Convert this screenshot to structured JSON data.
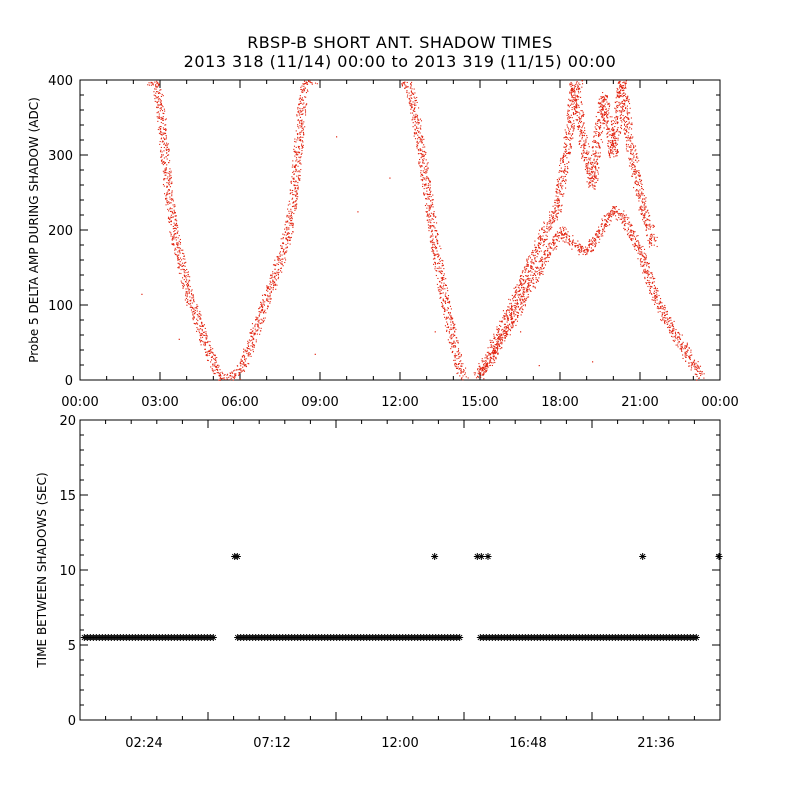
{
  "title_line1": "RBSP-B SHORT ANT. SHADOW TIMES",
  "title_line2": "2013 318 (11/14) 00:00 to 2013 319 (11/15) 00:00",
  "colors": {
    "top_points": "#e2230f",
    "bottom_points": "#000000",
    "axes": "#000000"
  },
  "chart_data": [
    {
      "type": "scatter",
      "ylabel": "Probe 5 DELTA AMP DURING SHADOW (ADC)",
      "xlabel": "",
      "xlim_hours": [
        0,
        24
      ],
      "ylim": [
        0,
        400
      ],
      "x_tick_labels": [
        "00:00",
        "03:00",
        "06:00",
        "09:00",
        "12:00",
        "15:00",
        "18:00",
        "21:00",
        "00:00"
      ],
      "y_tick_labels": [
        "0",
        "100",
        "200",
        "300",
        "400"
      ],
      "marker": "dot",
      "series": [
        {
          "points_hours_value": [
            [
              2.6,
              400
            ],
            [
              2.9,
              390
            ],
            [
              3.1,
              330
            ],
            [
              3.3,
              250
            ],
            [
              3.5,
              200
            ],
            [
              3.7,
              170
            ],
            [
              3.9,
              140
            ],
            [
              4.1,
              110
            ],
            [
              4.3,
              90
            ],
            [
              4.5,
              70
            ],
            [
              4.7,
              50
            ],
            [
              4.9,
              30
            ],
            [
              5.1,
              12
            ],
            [
              5.2,
              5
            ],
            [
              5.8,
              5
            ],
            [
              6.0,
              15
            ],
            [
              6.3,
              40
            ],
            [
              6.6,
              70
            ],
            [
              6.9,
              100
            ],
            [
              7.2,
              130
            ],
            [
              7.5,
              160
            ],
            [
              7.8,
              200
            ],
            [
              8.0,
              250
            ],
            [
              8.2,
              320
            ],
            [
              8.4,
              400
            ],
            [
              8.8,
              400
            ]
          ]
        },
        {
          "points_hours_value": [
            [
              12.2,
              400
            ],
            [
              12.5,
              370
            ],
            [
              12.8,
              300
            ],
            [
              13.1,
              230
            ],
            [
              13.4,
              160
            ],
            [
              13.7,
              100
            ],
            [
              14.0,
              50
            ],
            [
              14.2,
              20
            ],
            [
              14.4,
              5
            ]
          ]
        },
        {
          "points_hours_value": [
            [
              14.9,
              5
            ],
            [
              15.3,
              30
            ],
            [
              15.8,
              70
            ],
            [
              16.3,
              110
            ],
            [
              16.8,
              150
            ],
            [
              17.3,
              190
            ],
            [
              17.6,
              210
            ],
            [
              17.9,
              230
            ],
            [
              18.2,
              300
            ],
            [
              18.5,
              380
            ],
            [
              18.7,
              400
            ]
          ]
        },
        {
          "points_hours_value": [
            [
              15.0,
              8
            ],
            [
              15.6,
              40
            ],
            [
              16.2,
              80
            ],
            [
              16.8,
              120
            ],
            [
              17.3,
              155
            ],
            [
              17.8,
              185
            ],
            [
              18.0,
              200
            ],
            [
              18.5,
              180
            ],
            [
              19.0,
              170
            ],
            [
              19.5,
              200
            ],
            [
              20.0,
              230
            ],
            [
              20.5,
              210
            ],
            [
              21.0,
              170
            ],
            [
              21.5,
              120
            ],
            [
              22.0,
              80
            ],
            [
              22.5,
              50
            ],
            [
              23.0,
              20
            ],
            [
              23.3,
              5
            ]
          ]
        },
        {
          "points_hours_value": [
            [
              18.5,
              400
            ],
            [
              18.8,
              330
            ],
            [
              19.2,
              260
            ],
            [
              19.6,
              380
            ],
            [
              20.0,
              300
            ],
            [
              20.3,
              400
            ],
            [
              20.6,
              320
            ],
            [
              20.9,
              260
            ],
            [
              21.2,
              220
            ],
            [
              21.5,
              180
            ]
          ]
        },
        {
          "points_hours_value": [
            [
              2.3,
              115
            ],
            [
              3.7,
              55
            ],
            [
              8.8,
              35
            ],
            [
              9.6,
              325
            ],
            [
              10.4,
              225
            ],
            [
              11.6,
              270
            ],
            [
              13.3,
              65
            ],
            [
              15.5,
              40
            ],
            [
              16.5,
              65
            ],
            [
              17.2,
              20
            ],
            [
              19.2,
              25
            ]
          ]
        }
      ]
    },
    {
      "type": "scatter",
      "ylabel": "TIME BETWEEN SHADOWS (SEC)",
      "xlabel": "",
      "xlim_hours": [
        0,
        24
      ],
      "ylim": [
        0,
        20
      ],
      "x_tick_labels": [
        "02:24",
        "07:12",
        "12:00",
        "16:48",
        "21:36"
      ],
      "x_tick_hours": [
        2.4,
        7.2,
        12.0,
        16.8,
        21.6
      ],
      "y_tick_labels": [
        "0",
        "5",
        "10",
        "15",
        "20"
      ],
      "marker": "asterisk",
      "baseline_segments": [
        {
          "x_from_hours": 0.05,
          "x_to_hours": 5.2,
          "value": 5.5
        },
        {
          "x_from_hours": 5.8,
          "x_to_hours": 14.4,
          "value": 5.5
        },
        {
          "x_from_hours": 14.9,
          "x_to_hours": 23.3,
          "value": 5.5
        }
      ],
      "points_hours_value": [
        [
          5.8,
          10.9
        ],
        [
          5.9,
          10.9
        ],
        [
          13.3,
          10.9
        ],
        [
          14.9,
          10.9
        ],
        [
          15.05,
          10.9
        ],
        [
          15.3,
          10.9
        ],
        [
          21.1,
          10.9
        ],
        [
          24.0,
          10.9
        ]
      ]
    }
  ]
}
